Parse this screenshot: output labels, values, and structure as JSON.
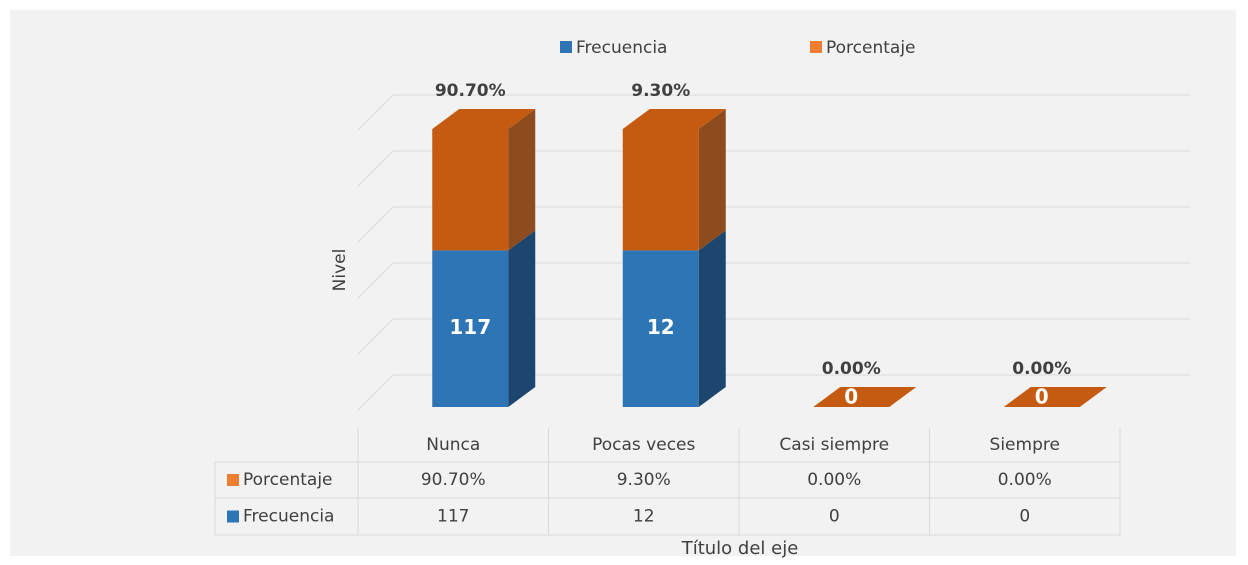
{
  "chart_data": {
    "type": "bar",
    "stacked": "percent",
    "three_d": true,
    "x_label": "Título del eje",
    "y_label": "Nivel",
    "categories": [
      "Nunca",
      "Pocas veces",
      "Casi siempre",
      "Siempre"
    ],
    "series": [
      {
        "name": "Frecuencia",
        "color": "#2e75b6",
        "values": [
          117,
          12,
          0,
          0
        ]
      },
      {
        "name": "Porcentaje",
        "color": "#ed7d31",
        "values": [
          90.7,
          9.3,
          0,
          0
        ],
        "value_labels": [
          "90.70%",
          "9.30%",
          "0.00%",
          "0.00%"
        ]
      }
    ],
    "ylim": [
      0,
      100
    ],
    "yticks": [
      0,
      20,
      40,
      60,
      80,
      100
    ],
    "grid": true,
    "legend": "top",
    "data_table": true
  }
}
